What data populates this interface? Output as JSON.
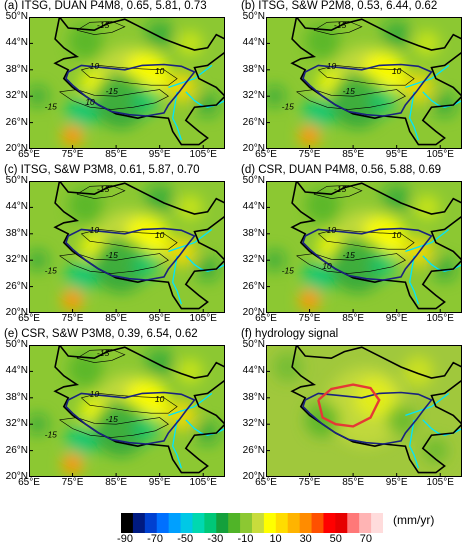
{
  "panels": [
    {
      "id": "a",
      "title": "(a) ITSG, DUAN P4M8, 0.65, 5.81, 0.73",
      "kind": "gravity",
      "contour_labels": [
        "-15",
        "10",
        "10",
        "-15",
        "-15",
        "10"
      ]
    },
    {
      "id": "b",
      "title": "(b) ITSG, S&W P2M8, 0.53, 6.44, 0.62",
      "kind": "gravity",
      "contour_labels": [
        "-15",
        "10",
        "10",
        "-15",
        "-15"
      ]
    },
    {
      "id": "c",
      "title": "(c) ITSG, S&W P3M8, 0.61, 5.87, 0.70",
      "kind": "gravity",
      "contour_labels": [
        "-15",
        "10",
        "10",
        "-15",
        "-15"
      ]
    },
    {
      "id": "d",
      "title": "(d) CSR, DUAN P4M8, 0.56, 5.88, 0.69",
      "kind": "gravity",
      "contour_labels": [
        "-15",
        "10",
        "10",
        "-15",
        "-15",
        "10"
      ]
    },
    {
      "id": "e",
      "title": "(e) CSR, S&W P3M8, 0.39, 6.54, 0.62",
      "kind": "gravity",
      "contour_labels": [
        "-15",
        "10",
        "10",
        "-15",
        "-15"
      ]
    },
    {
      "id": "f",
      "title": "(f) hydrology signal",
      "kind": "hydrology",
      "contour_labels": []
    }
  ],
  "y_ticks": [
    "50°N",
    "44°N",
    "38°N",
    "32°N",
    "26°N",
    "20°N"
  ],
  "x_ticks": [
    "65°E",
    "75°E",
    "85°E",
    "95°E",
    "105°E"
  ],
  "colorbar": {
    "unit_label": "(mm/yr)",
    "tick_labels": [
      "-90",
      "-70",
      "-50",
      "-30",
      "-10",
      "10",
      "30",
      "50",
      "70"
    ],
    "colors": [
      "#000000",
      "#001a80",
      "#0040d0",
      "#0070ff",
      "#00a0ff",
      "#00c8e6",
      "#00d8b0",
      "#00c878",
      "#14a03c",
      "#50b428",
      "#8cc832",
      "#c8dc3c",
      "#ffff00",
      "#ffdc00",
      "#ffb400",
      "#ff8c00",
      "#ff5000",
      "#ff0000",
      "#e60000",
      "#ff7878",
      "#ffb4b4",
      "#ffdcdc"
    ]
  },
  "feature_colors": {
    "boundary": "#000000",
    "plateau": "#1a237e",
    "rivers": "#00e5ff",
    "hydro_contour": "#e53935"
  }
}
